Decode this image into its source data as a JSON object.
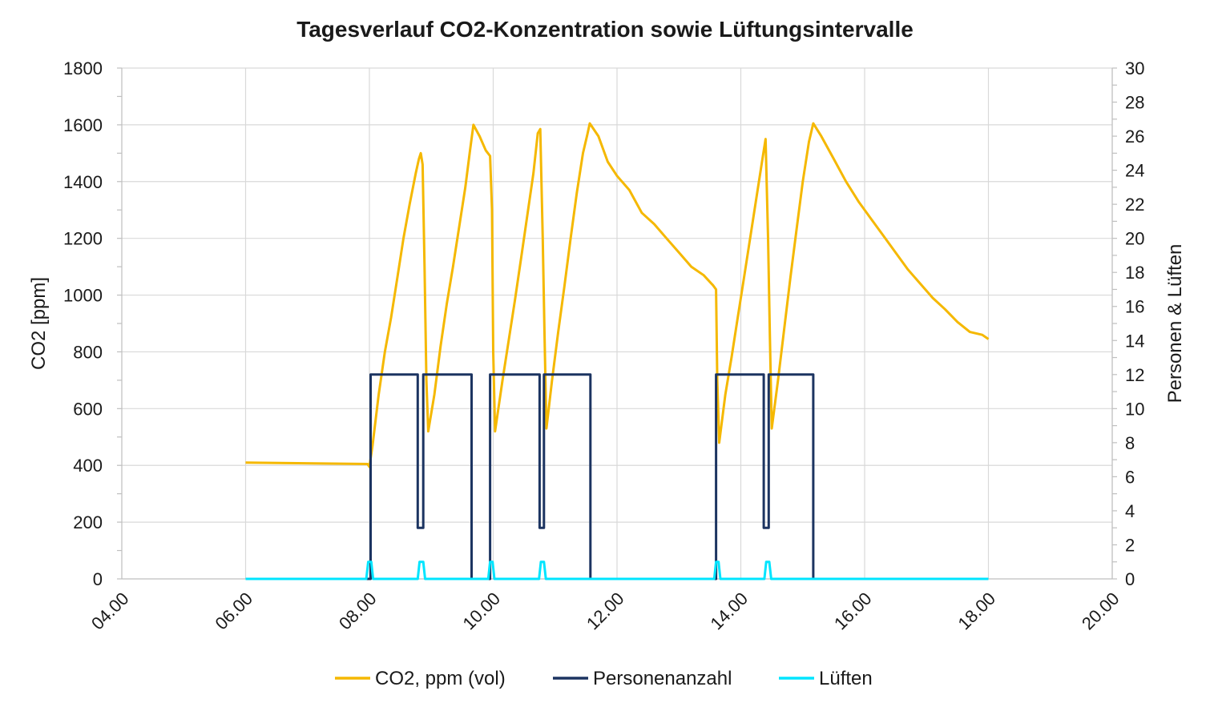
{
  "chart_data": {
    "type": "line",
    "title": "Tagesverlauf CO2-Konzentration sowie Lüftungsintervalle",
    "ylabel": "CO2 [ppm]",
    "y2label": "Personen & Lüften",
    "xlim": [
      4,
      20
    ],
    "ylim": [
      0,
      1800
    ],
    "y2lim": [
      0,
      30
    ],
    "x_ticks": [
      4,
      6,
      8,
      10,
      12,
      14,
      16,
      18,
      20
    ],
    "x_tick_labels": [
      "04.00",
      "06.00",
      "08.00",
      "10.00",
      "12.00",
      "14.00",
      "16.00",
      "18.00",
      "20.00"
    ],
    "y_ticks": [
      0,
      200,
      400,
      600,
      800,
      1000,
      1200,
      1400,
      1600,
      1800
    ],
    "y2_ticks": [
      0,
      2,
      4,
      6,
      8,
      10,
      12,
      14,
      16,
      18,
      20,
      22,
      24,
      26,
      28,
      30
    ],
    "grid": true,
    "legend_position": "bottom",
    "series": [
      {
        "name": "CO2, ppm (vol)",
        "axis": "left",
        "color": "#F5B800",
        "points": [
          [
            6.0,
            410
          ],
          [
            7.97,
            405
          ],
          [
            8.0,
            395
          ],
          [
            8.05,
            470
          ],
          [
            8.15,
            650
          ],
          [
            8.25,
            800
          ],
          [
            8.35,
            920
          ],
          [
            8.45,
            1060
          ],
          [
            8.55,
            1200
          ],
          [
            8.65,
            1320
          ],
          [
            8.75,
            1430
          ],
          [
            8.8,
            1480
          ],
          [
            8.83,
            1500
          ],
          [
            8.86,
            1460
          ],
          [
            8.89,
            1100
          ],
          [
            8.92,
            700
          ],
          [
            8.95,
            520
          ],
          [
            9.05,
            650
          ],
          [
            9.15,
            820
          ],
          [
            9.25,
            970
          ],
          [
            9.35,
            1100
          ],
          [
            9.45,
            1240
          ],
          [
            9.55,
            1380
          ],
          [
            9.62,
            1500
          ],
          [
            9.68,
            1600
          ],
          [
            9.78,
            1560
          ],
          [
            9.88,
            1510
          ],
          [
            9.95,
            1490
          ],
          [
            9.98,
            1300
          ],
          [
            10.0,
            800
          ],
          [
            10.03,
            520
          ],
          [
            10.15,
            700
          ],
          [
            10.25,
            840
          ],
          [
            10.35,
            980
          ],
          [
            10.45,
            1130
          ],
          [
            10.55,
            1280
          ],
          [
            10.65,
            1430
          ],
          [
            10.72,
            1570
          ],
          [
            10.76,
            1585
          ],
          [
            10.8,
            1200
          ],
          [
            10.83,
            850
          ],
          [
            10.86,
            530
          ],
          [
            10.95,
            700
          ],
          [
            11.05,
            870
          ],
          [
            11.15,
            1030
          ],
          [
            11.25,
            1200
          ],
          [
            11.35,
            1360
          ],
          [
            11.45,
            1500
          ],
          [
            11.52,
            1565
          ],
          [
            11.56,
            1605
          ],
          [
            11.7,
            1560
          ],
          [
            11.85,
            1470
          ],
          [
            12.0,
            1420
          ],
          [
            12.2,
            1370
          ],
          [
            12.4,
            1290
          ],
          [
            12.6,
            1250
          ],
          [
            12.8,
            1200
          ],
          [
            13.0,
            1150
          ],
          [
            13.2,
            1100
          ],
          [
            13.4,
            1070
          ],
          [
            13.55,
            1035
          ],
          [
            13.6,
            1020
          ],
          [
            13.62,
            700
          ],
          [
            13.65,
            480
          ],
          [
            13.75,
            650
          ],
          [
            13.85,
            780
          ],
          [
            13.95,
            920
          ],
          [
            14.05,
            1060
          ],
          [
            14.15,
            1200
          ],
          [
            14.25,
            1340
          ],
          [
            14.35,
            1480
          ],
          [
            14.4,
            1550
          ],
          [
            14.44,
            1200
          ],
          [
            14.47,
            850
          ],
          [
            14.5,
            530
          ],
          [
            14.6,
            700
          ],
          [
            14.7,
            880
          ],
          [
            14.8,
            1060
          ],
          [
            14.9,
            1230
          ],
          [
            15.0,
            1400
          ],
          [
            15.1,
            1540
          ],
          [
            15.17,
            1605
          ],
          [
            15.3,
            1560
          ],
          [
            15.5,
            1480
          ],
          [
            15.7,
            1400
          ],
          [
            15.9,
            1330
          ],
          [
            16.1,
            1270
          ],
          [
            16.3,
            1210
          ],
          [
            16.5,
            1150
          ],
          [
            16.7,
            1090
          ],
          [
            16.9,
            1040
          ],
          [
            17.1,
            990
          ],
          [
            17.3,
            950
          ],
          [
            17.5,
            905
          ],
          [
            17.7,
            870
          ],
          [
            17.9,
            860
          ],
          [
            18.0,
            845
          ]
        ]
      },
      {
        "name": "Personenanzahl",
        "axis": "right",
        "color": "#1C3461",
        "points": [
          [
            6.0,
            0
          ],
          [
            8.02,
            0
          ],
          [
            8.02,
            12
          ],
          [
            8.78,
            12
          ],
          [
            8.78,
            3
          ],
          [
            8.87,
            3
          ],
          [
            8.87,
            12
          ],
          [
            9.65,
            12
          ],
          [
            9.65,
            0
          ],
          [
            9.95,
            0
          ],
          [
            9.95,
            12
          ],
          [
            10.75,
            12
          ],
          [
            10.75,
            3
          ],
          [
            10.82,
            3
          ],
          [
            10.82,
            12
          ],
          [
            11.57,
            12
          ],
          [
            11.57,
            0
          ],
          [
            13.6,
            0
          ],
          [
            13.6,
            12
          ],
          [
            14.37,
            12
          ],
          [
            14.37,
            3
          ],
          [
            14.45,
            3
          ],
          [
            14.45,
            12
          ],
          [
            15.17,
            12
          ],
          [
            15.17,
            0
          ],
          [
            18.0,
            0
          ]
        ]
      },
      {
        "name": "Lüften",
        "axis": "right",
        "color": "#00E5FF",
        "points": [
          [
            6.0,
            0
          ],
          [
            7.95,
            0
          ],
          [
            7.98,
            1
          ],
          [
            8.03,
            1
          ],
          [
            8.06,
            0
          ],
          [
            8.78,
            0
          ],
          [
            8.81,
            1
          ],
          [
            8.87,
            1
          ],
          [
            8.9,
            0
          ],
          [
            9.92,
            0
          ],
          [
            9.95,
            1
          ],
          [
            9.99,
            1
          ],
          [
            10.02,
            0
          ],
          [
            10.74,
            0
          ],
          [
            10.77,
            1
          ],
          [
            10.82,
            1
          ],
          [
            10.85,
            0
          ],
          [
            13.57,
            0
          ],
          [
            13.6,
            1
          ],
          [
            13.64,
            1
          ],
          [
            13.67,
            0
          ],
          [
            14.38,
            0
          ],
          [
            14.41,
            1
          ],
          [
            14.46,
            1
          ],
          [
            14.49,
            0
          ],
          [
            18.0,
            0
          ]
        ]
      }
    ]
  }
}
